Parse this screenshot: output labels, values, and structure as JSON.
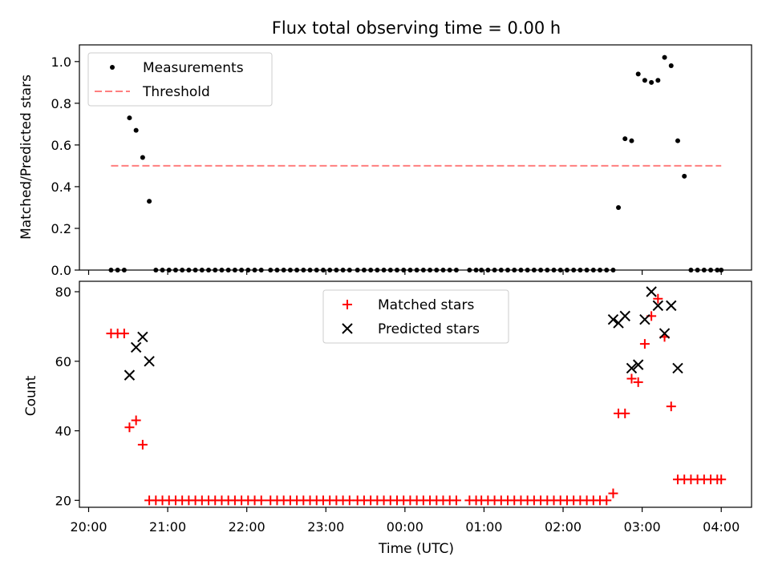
{
  "title": "Flux total observing time = 0.00 h",
  "chart_data": [
    {
      "type": "scatter",
      "ylabel": "Matched/Predicted stars",
      "xlabel": "",
      "ylim": [
        0,
        1.08
      ],
      "yticks": [
        0.0,
        0.2,
        0.4,
        0.6,
        0.8,
        1.0
      ],
      "ytick_labels": [
        "0.0",
        "0.2",
        "0.4",
        "0.6",
        "0.8",
        "1.0"
      ],
      "legend_position": "upper-left",
      "legend": [
        {
          "label": "Measurements",
          "marker": "dot",
          "color": "#000000"
        },
        {
          "label": "Threshold",
          "marker": "dashed-line",
          "color": "#ff7f7f"
        }
      ],
      "threshold": {
        "value": 0.5,
        "x_start": "20:17",
        "x_end": "04:00"
      },
      "series": [
        {
          "name": "Measurements",
          "marker": "dot",
          "color": "#000000",
          "points": [
            [
              "20:17",
              0
            ],
            [
              "20:22",
              0
            ],
            [
              "20:27",
              0
            ],
            [
              "20:31",
              0.73
            ],
            [
              "20:36",
              0.67
            ],
            [
              "20:41",
              0.54
            ],
            [
              "20:46",
              0.33
            ],
            [
              "20:51",
              0
            ],
            [
              "20:56",
              0
            ],
            [
              "21:01",
              0
            ],
            [
              "21:06",
              0
            ],
            [
              "21:11",
              0
            ],
            [
              "21:16",
              0
            ],
            [
              "21:21",
              0
            ],
            [
              "21:26",
              0
            ],
            [
              "21:31",
              0
            ],
            [
              "21:36",
              0
            ],
            [
              "21:41",
              0
            ],
            [
              "21:46",
              0
            ],
            [
              "21:51",
              0
            ],
            [
              "21:56",
              0
            ],
            [
              "22:01",
              0
            ],
            [
              "22:06",
              0
            ],
            [
              "22:11",
              0
            ],
            [
              "22:18",
              0
            ],
            [
              "22:23",
              0
            ],
            [
              "22:28",
              0
            ],
            [
              "22:33",
              0
            ],
            [
              "22:38",
              0
            ],
            [
              "22:43",
              0
            ],
            [
              "22:48",
              0
            ],
            [
              "22:53",
              0
            ],
            [
              "22:58",
              0
            ],
            [
              "23:03",
              0
            ],
            [
              "23:08",
              0
            ],
            [
              "23:13",
              0
            ],
            [
              "23:18",
              0
            ],
            [
              "23:24",
              0
            ],
            [
              "23:29",
              0
            ],
            [
              "23:34",
              0
            ],
            [
              "23:39",
              0
            ],
            [
              "23:44",
              0
            ],
            [
              "23:49",
              0
            ],
            [
              "23:54",
              0
            ],
            [
              "23:59",
              0
            ],
            [
              "00:04",
              0
            ],
            [
              "00:09",
              0
            ],
            [
              "00:14",
              0
            ],
            [
              "00:19",
              0
            ],
            [
              "00:24",
              0
            ],
            [
              "00:29",
              0
            ],
            [
              "00:34",
              0
            ],
            [
              "00:39",
              0
            ],
            [
              "00:49",
              0
            ],
            [
              "00:54",
              0
            ],
            [
              "00:58",
              0
            ],
            [
              "01:03",
              0
            ],
            [
              "01:08",
              0
            ],
            [
              "01:13",
              0
            ],
            [
              "01:18",
              0
            ],
            [
              "01:23",
              0
            ],
            [
              "01:28",
              0
            ],
            [
              "01:33",
              0
            ],
            [
              "01:38",
              0
            ],
            [
              "01:43",
              0
            ],
            [
              "01:48",
              0
            ],
            [
              "01:53",
              0
            ],
            [
              "01:58",
              0
            ],
            [
              "02:03",
              0
            ],
            [
              "02:08",
              0
            ],
            [
              "02:13",
              0
            ],
            [
              "02:18",
              0
            ],
            [
              "02:23",
              0
            ],
            [
              "02:28",
              0
            ],
            [
              "02:33",
              0
            ],
            [
              "02:38",
              0
            ],
            [
              "02:42",
              0.3
            ],
            [
              "02:47",
              0.63
            ],
            [
              "02:52",
              0.62
            ],
            [
              "02:57",
              0.94
            ],
            [
              "03:02",
              0.91
            ],
            [
              "03:07",
              0.9
            ],
            [
              "03:12",
              0.91
            ],
            [
              "03:17",
              1.02
            ],
            [
              "03:22",
              0.98
            ],
            [
              "03:27",
              0.62
            ],
            [
              "03:32",
              0.45
            ],
            [
              "03:37",
              0
            ],
            [
              "03:42",
              0
            ],
            [
              "03:47",
              0
            ],
            [
              "03:52",
              0
            ],
            [
              "03:57",
              0
            ],
            [
              "04:00",
              0
            ]
          ]
        }
      ]
    },
    {
      "type": "scatter",
      "ylabel": "Count",
      "xlabel": "Time (UTC)",
      "ylim": [
        18,
        83
      ],
      "yticks": [
        20,
        40,
        60,
        80
      ],
      "ytick_labels": [
        "20",
        "40",
        "60",
        "80"
      ],
      "xtick_labels": [
        "20:00",
        "21:00",
        "22:00",
        "23:00",
        "00:00",
        "01:00",
        "02:00",
        "03:00",
        "04:00"
      ],
      "xlim": [
        "19:53",
        "04:23"
      ],
      "legend_position": "upper-center",
      "legend": [
        {
          "label": "Matched stars",
          "marker": "plus",
          "color": "#ff0000"
        },
        {
          "label": "Predicted stars",
          "marker": "x",
          "color": "#000000"
        }
      ],
      "series": [
        {
          "name": "Matched stars",
          "marker": "plus",
          "color": "#ff0000",
          "points": [
            [
              "20:17",
              68
            ],
            [
              "20:22",
              68
            ],
            [
              "20:27",
              68
            ],
            [
              "20:31",
              41
            ],
            [
              "20:36",
              43
            ],
            [
              "20:41",
              36
            ],
            [
              "20:46",
              20
            ],
            [
              "20:51",
              20
            ],
            [
              "20:56",
              20
            ],
            [
              "21:01",
              20
            ],
            [
              "21:06",
              20
            ],
            [
              "21:11",
              20
            ],
            [
              "21:16",
              20
            ],
            [
              "21:21",
              20
            ],
            [
              "21:26",
              20
            ],
            [
              "21:31",
              20
            ],
            [
              "21:36",
              20
            ],
            [
              "21:41",
              20
            ],
            [
              "21:46",
              20
            ],
            [
              "21:51",
              20
            ],
            [
              "21:56",
              20
            ],
            [
              "22:01",
              20
            ],
            [
              "22:06",
              20
            ],
            [
              "22:11",
              20
            ],
            [
              "22:18",
              20
            ],
            [
              "22:23",
              20
            ],
            [
              "22:28",
              20
            ],
            [
              "22:33",
              20
            ],
            [
              "22:38",
              20
            ],
            [
              "22:43",
              20
            ],
            [
              "22:48",
              20
            ],
            [
              "22:53",
              20
            ],
            [
              "22:58",
              20
            ],
            [
              "23:03",
              20
            ],
            [
              "23:08",
              20
            ],
            [
              "23:13",
              20
            ],
            [
              "23:18",
              20
            ],
            [
              "23:24",
              20
            ],
            [
              "23:29",
              20
            ],
            [
              "23:34",
              20
            ],
            [
              "23:39",
              20
            ],
            [
              "23:44",
              20
            ],
            [
              "23:49",
              20
            ],
            [
              "23:54",
              20
            ],
            [
              "23:59",
              20
            ],
            [
              "00:04",
              20
            ],
            [
              "00:09",
              20
            ],
            [
              "00:14",
              20
            ],
            [
              "00:19",
              20
            ],
            [
              "00:24",
              20
            ],
            [
              "00:29",
              20
            ],
            [
              "00:34",
              20
            ],
            [
              "00:39",
              20
            ],
            [
              "00:49",
              20
            ],
            [
              "00:54",
              20
            ],
            [
              "00:58",
              20
            ],
            [
              "01:03",
              20
            ],
            [
              "01:08",
              20
            ],
            [
              "01:13",
              20
            ],
            [
              "01:18",
              20
            ],
            [
              "01:23",
              20
            ],
            [
              "01:28",
              20
            ],
            [
              "01:33",
              20
            ],
            [
              "01:38",
              20
            ],
            [
              "01:43",
              20
            ],
            [
              "01:48",
              20
            ],
            [
              "01:53",
              20
            ],
            [
              "01:58",
              20
            ],
            [
              "02:03",
              20
            ],
            [
              "02:08",
              20
            ],
            [
              "02:13",
              20
            ],
            [
              "02:18",
              20
            ],
            [
              "02:23",
              20
            ],
            [
              "02:28",
              20
            ],
            [
              "02:33",
              20
            ],
            [
              "02:38",
              22
            ],
            [
              "02:42",
              45
            ],
            [
              "02:47",
              45
            ],
            [
              "02:52",
              55
            ],
            [
              "02:57",
              54
            ],
            [
              "03:02",
              65
            ],
            [
              "03:07",
              73
            ],
            [
              "03:12",
              78
            ],
            [
              "03:17",
              67
            ],
            [
              "03:22",
              47
            ],
            [
              "03:27",
              26
            ],
            [
              "03:32",
              26
            ],
            [
              "03:37",
              26
            ],
            [
              "03:42",
              26
            ],
            [
              "03:47",
              26
            ],
            [
              "03:52",
              26
            ],
            [
              "03:57",
              26
            ],
            [
              "04:00",
              26
            ]
          ]
        },
        {
          "name": "Predicted stars",
          "marker": "x",
          "color": "#000000",
          "points": [
            [
              "20:31",
              56
            ],
            [
              "20:36",
              64
            ],
            [
              "20:41",
              67
            ],
            [
              "20:46",
              60
            ],
            [
              "02:38",
              72
            ],
            [
              "02:42",
              71
            ],
            [
              "02:47",
              73
            ],
            [
              "02:52",
              58
            ],
            [
              "02:57",
              59
            ],
            [
              "03:02",
              72
            ],
            [
              "03:07",
              80
            ],
            [
              "03:12",
              76
            ],
            [
              "03:17",
              68
            ],
            [
              "03:22",
              76
            ],
            [
              "03:27",
              58
            ]
          ]
        }
      ]
    }
  ]
}
